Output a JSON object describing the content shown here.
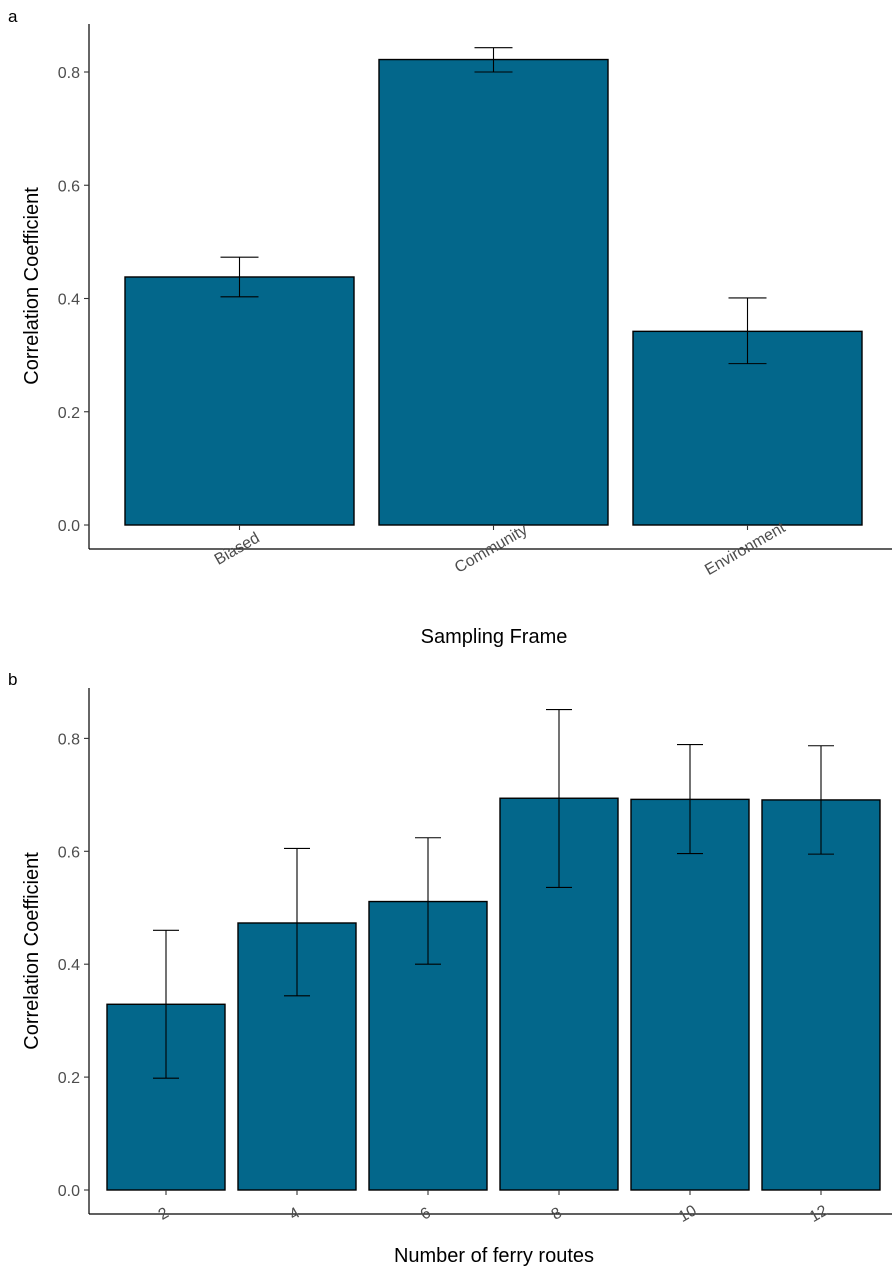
{
  "colors": {
    "bar_fill": "#03678B",
    "bar_stroke": "#000000",
    "axis": "#000000",
    "tick_text": "#4d4d4d"
  },
  "chart_data": [
    {
      "type": "bar",
      "panel_label": "a",
      "categories": [
        "Biased",
        "Community",
        "Environment"
      ],
      "values": [
        0.438,
        0.822,
        0.342
      ],
      "error_low": [
        0.403,
        0.8,
        0.285
      ],
      "error_high": [
        0.473,
        0.843,
        0.401
      ],
      "xlabel": "Sampling Frame",
      "ylabel": "Correlation Coefficient",
      "yticks": [
        "0.0",
        "0.2",
        "0.4",
        "0.6",
        "0.8"
      ],
      "ylim": [
        0,
        0.87
      ],
      "grid": false,
      "tick_rotation": -30
    },
    {
      "type": "bar",
      "panel_label": "b",
      "categories": [
        "2",
        "4",
        "6",
        "8",
        "10",
        "12"
      ],
      "values": [
        0.329,
        0.473,
        0.511,
        0.694,
        0.692,
        0.691
      ],
      "error_low": [
        0.198,
        0.344,
        0.4,
        0.536,
        0.596,
        0.595
      ],
      "error_high": [
        0.46,
        0.605,
        0.624,
        0.851,
        0.789,
        0.787
      ],
      "xlabel": "Number of ferry routes",
      "ylabel": "Correlation Coefficient",
      "yticks": [
        "0.0",
        "0.2",
        "0.4",
        "0.6",
        "0.8"
      ],
      "ylim": [
        0,
        0.87
      ],
      "grid": false,
      "tick_rotation": -30
    }
  ]
}
